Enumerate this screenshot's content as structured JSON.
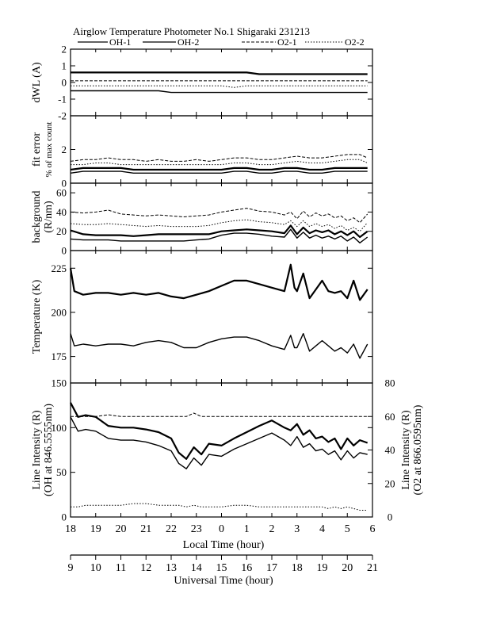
{
  "figure": {
    "title": "Airglow Temperature Photometer No.1   Shigaraki   231213",
    "legend": [
      {
        "name": "OH-1",
        "style": "solid"
      },
      {
        "name": "OH-2",
        "style": "solid"
      },
      {
        "name": "O2-1",
        "style": "dashed"
      },
      {
        "name": "O2-2",
        "style": "dotted"
      }
    ],
    "xlabel_local": "Local Time (hour)",
    "xlabel_ut": "Universal Time (hour)",
    "local_ticks": [
      "18",
      "19",
      "20",
      "21",
      "22",
      "23",
      "0",
      "1",
      "2",
      "3",
      "4",
      "5",
      "6"
    ],
    "ut_ticks": [
      "9",
      "10",
      "11",
      "12",
      "13",
      "14",
      "15",
      "16",
      "17",
      "18",
      "19",
      "20",
      "21"
    ]
  },
  "chart_data": [
    {
      "type": "line",
      "panel": "dwl",
      "ylabel": "dWL (A)",
      "ylim": [
        -2,
        2
      ],
      "yticks": [
        "2",
        "1",
        "0",
        "-1",
        "-2"
      ],
      "x_local": [
        18,
        18.5,
        19,
        19.5,
        20,
        20.5,
        21,
        21.5,
        22,
        22.5,
        23,
        23.5,
        0,
        0.5,
        1,
        1.5,
        2,
        2.5,
        3,
        3.5,
        4,
        4.5,
        5,
        5.5,
        5.8
      ],
      "series": [
        {
          "name": "OH-1",
          "values": [
            0.6,
            0.6,
            0.6,
            0.6,
            0.6,
            0.6,
            0.6,
            0.6,
            0.6,
            0.6,
            0.6,
            0.6,
            0.6,
            0.6,
            0.6,
            0.5,
            0.5,
            0.5,
            0.5,
            0.5,
            0.5,
            0.5,
            0.5,
            0.5,
            0.5
          ]
        },
        {
          "name": "OH-2",
          "values": [
            -0.5,
            -0.5,
            -0.5,
            -0.5,
            -0.5,
            -0.5,
            -0.5,
            -0.5,
            -0.6,
            -0.6,
            -0.6,
            -0.6,
            -0.6,
            -0.6,
            -0.6,
            -0.6,
            -0.6,
            -0.6,
            -0.6,
            -0.6,
            -0.6,
            -0.6,
            -0.6,
            -0.6,
            -0.6
          ]
        },
        {
          "name": "O2-1",
          "values": [
            0.1,
            0.1,
            0.1,
            0.1,
            0.1,
            0.1,
            0.1,
            0.1,
            0.1,
            0.1,
            0.1,
            0.1,
            0.1,
            0.1,
            0.1,
            0.1,
            0.1,
            0.1,
            0.1,
            0.1,
            0.1,
            0.1,
            0.1,
            0.1,
            0.1
          ]
        },
        {
          "name": "O2-2",
          "values": [
            -0.2,
            -0.2,
            -0.2,
            -0.2,
            -0.2,
            -0.2,
            -0.2,
            -0.2,
            -0.2,
            -0.2,
            -0.2,
            -0.2,
            -0.2,
            -0.3,
            -0.2,
            -0.2,
            -0.2,
            -0.2,
            -0.2,
            -0.2,
            -0.2,
            -0.2,
            -0.2,
            -0.2,
            -0.2
          ]
        }
      ]
    },
    {
      "type": "line",
      "panel": "fit",
      "ylabel": [
        "fit error",
        "% of max count"
      ],
      "ylim": [
        0,
        4
      ],
      "yticks": [
        "2",
        "0"
      ],
      "x_local": [
        18,
        18.5,
        19,
        19.5,
        20,
        20.5,
        21,
        21.5,
        22,
        22.5,
        23,
        23.5,
        0,
        0.5,
        1,
        1.5,
        2,
        2.5,
        3,
        3.5,
        4,
        4.5,
        5,
        5.5,
        5.8
      ],
      "series": [
        {
          "name": "OH-1",
          "values": [
            0.8,
            0.9,
            0.9,
            0.9,
            0.9,
            0.8,
            0.8,
            0.8,
            0.8,
            0.8,
            0.8,
            0.8,
            0.8,
            0.9,
            0.9,
            0.8,
            0.8,
            0.9,
            0.9,
            0.8,
            0.8,
            0.9,
            0.9,
            0.9,
            0.9
          ]
        },
        {
          "name": "OH-2",
          "values": [
            0.6,
            0.7,
            0.7,
            0.7,
            0.7,
            0.6,
            0.6,
            0.6,
            0.6,
            0.6,
            0.6,
            0.6,
            0.6,
            0.7,
            0.7,
            0.6,
            0.6,
            0.7,
            0.7,
            0.6,
            0.6,
            0.7,
            0.7,
            0.7,
            0.7
          ]
        },
        {
          "name": "O2-1",
          "values": [
            1.3,
            1.4,
            1.4,
            1.5,
            1.4,
            1.4,
            1.3,
            1.4,
            1.3,
            1.3,
            1.4,
            1.3,
            1.4,
            1.5,
            1.5,
            1.4,
            1.4,
            1.5,
            1.6,
            1.5,
            1.5,
            1.6,
            1.7,
            1.7,
            1.5
          ]
        },
        {
          "name": "O2-2",
          "values": [
            1.1,
            1.1,
            1.2,
            1.2,
            1.1,
            1.1,
            1.1,
            1.1,
            1.1,
            1.1,
            1.1,
            1.1,
            1.1,
            1.2,
            1.2,
            1.1,
            1.1,
            1.2,
            1.3,
            1.2,
            1.2,
            1.3,
            1.4,
            1.4,
            1.2
          ]
        }
      ]
    },
    {
      "type": "line",
      "panel": "background",
      "ylabel": [
        "background",
        "(R/nm)"
      ],
      "ylim": [
        0,
        70
      ],
      "yticks": [
        "60",
        "40",
        "20",
        "0"
      ],
      "x_local": [
        18,
        18.5,
        19,
        19.5,
        20,
        20.5,
        21,
        21.5,
        22,
        22.5,
        23,
        23.5,
        0,
        0.5,
        1,
        1.5,
        2,
        2.5,
        2.75,
        3,
        3.25,
        3.5,
        3.75,
        4,
        4.25,
        4.5,
        4.75,
        5,
        5.25,
        5.5,
        5.8
      ],
      "series": [
        {
          "name": "OH-1",
          "values": [
            21,
            17,
            16,
            16,
            16,
            15,
            16,
            17,
            17,
            17,
            17,
            17,
            20,
            21,
            22,
            21,
            20,
            18,
            26,
            17,
            24,
            18,
            21,
            19,
            21,
            17,
            20,
            16,
            20,
            14,
            20
          ]
        },
        {
          "name": "OH-2",
          "values": [
            12,
            11,
            11,
            11,
            10,
            10,
            10,
            10,
            10,
            10,
            11,
            12,
            16,
            18,
            18,
            17,
            15,
            14,
            22,
            13,
            19,
            13,
            16,
            13,
            15,
            12,
            15,
            10,
            14,
            8,
            14
          ]
        },
        {
          "name": "O2-1",
          "values": [
            40,
            39,
            40,
            42,
            38,
            37,
            36,
            37,
            36,
            35,
            36,
            37,
            40,
            42,
            44,
            41,
            40,
            37,
            40,
            33,
            41,
            35,
            39,
            36,
            38,
            34,
            36,
            31,
            34,
            29,
            38
          ]
        },
        {
          "name": "O2-2",
          "values": [
            28,
            27,
            27,
            28,
            27,
            26,
            25,
            26,
            25,
            25,
            25,
            26,
            29,
            31,
            32,
            30,
            29,
            27,
            31,
            25,
            31,
            25,
            28,
            25,
            27,
            23,
            26,
            21,
            24,
            20,
            29
          ]
        }
      ]
    },
    {
      "type": "line",
      "panel": "temperature",
      "ylabel": "Temperature (K)",
      "ylim": [
        160,
        235
      ],
      "yticks": [
        "225",
        "200",
        "175"
      ],
      "x_local": [
        18,
        18.15,
        18.5,
        19,
        19.5,
        20,
        20.5,
        21,
        21.5,
        22,
        22.5,
        23,
        23.5,
        0,
        0.5,
        1,
        1.5,
        2,
        2.5,
        2.75,
        2.9,
        3,
        3.25,
        3.5,
        3.75,
        4,
        4.25,
        4.5,
        4.75,
        5,
        5.25,
        5.5,
        5.8
      ],
      "series": [
        {
          "name": "OH-1",
          "values": [
            225,
            212,
            210,
            211,
            211,
            210,
            211,
            210,
            211,
            209,
            208,
            210,
            212,
            215,
            218,
            218,
            216,
            214,
            212,
            227,
            214,
            212,
            222,
            208,
            213,
            218,
            212,
            211,
            212,
            208,
            218,
            207,
            213
          ]
        },
        {
          "name": "OH-2",
          "values": [
            188,
            181,
            182,
            181,
            182,
            182,
            181,
            183,
            184,
            183,
            180,
            180,
            183,
            185,
            186,
            186,
            184,
            181,
            179,
            187,
            180,
            180,
            188,
            178,
            181,
            184,
            181,
            178,
            180,
            177,
            182,
            174,
            182
          ]
        }
      ]
    },
    {
      "type": "line",
      "panel": "intensity",
      "ylabel_left": [
        "Line Intensity (R)",
        "(OH at 846.5555nm)"
      ],
      "ylabel_right": [
        "Line Intensity (R)",
        "(O2 at 866.0595nm)"
      ],
      "ylim": [
        0,
        150
      ],
      "ylim_right": [
        0,
        80
      ],
      "yticks": [
        "150",
        "100",
        "50",
        "0"
      ],
      "yticks_right": [
        "80",
        "60",
        "40",
        "20",
        "0"
      ],
      "x_local": [
        18,
        18.3,
        18.6,
        19,
        19.5,
        20,
        20.5,
        21,
        21.5,
        22,
        22.3,
        22.6,
        22.9,
        23.2,
        23.5,
        0,
        0.5,
        1,
        1.5,
        2,
        2.5,
        2.75,
        3,
        3.25,
        3.5,
        3.75,
        4,
        4.25,
        4.5,
        4.75,
        5,
        5.25,
        5.5,
        5.8
      ],
      "series": [
        {
          "name": "OH-1",
          "values": [
            128,
            112,
            114,
            112,
            102,
            100,
            100,
            98,
            95,
            88,
            72,
            65,
            78,
            70,
            82,
            80,
            88,
            95,
            102,
            108,
            100,
            97,
            104,
            92,
            97,
            88,
            90,
            84,
            88,
            76,
            88,
            80,
            86,
            83
          ]
        },
        {
          "name": "OH-2",
          "values": [
            112,
            96,
            98,
            96,
            88,
            86,
            86,
            84,
            80,
            74,
            60,
            54,
            66,
            58,
            70,
            68,
            76,
            82,
            88,
            94,
            86,
            80,
            90,
            78,
            82,
            74,
            76,
            70,
            74,
            64,
            74,
            66,
            72,
            70
          ]
        },
        {
          "name": "O2-1",
          "values": [
            60,
            60,
            60,
            60,
            61,
            60,
            60,
            60,
            60,
            60,
            60,
            60,
            62,
            60,
            60,
            60,
            60,
            60,
            60,
            60,
            60,
            60,
            60,
            60,
            60,
            60,
            60,
            60,
            60,
            60,
            60,
            60,
            60,
            60
          ]
        },
        {
          "name": "O2-2",
          "values": [
            6,
            6,
            7,
            7,
            7,
            7,
            8,
            8,
            7,
            7,
            7,
            6,
            7,
            6,
            6,
            6,
            7,
            7,
            6,
            6,
            6,
            6,
            6,
            6,
            6,
            6,
            6,
            5,
            6,
            5,
            6,
            5,
            4,
            4
          ]
        }
      ]
    }
  ]
}
